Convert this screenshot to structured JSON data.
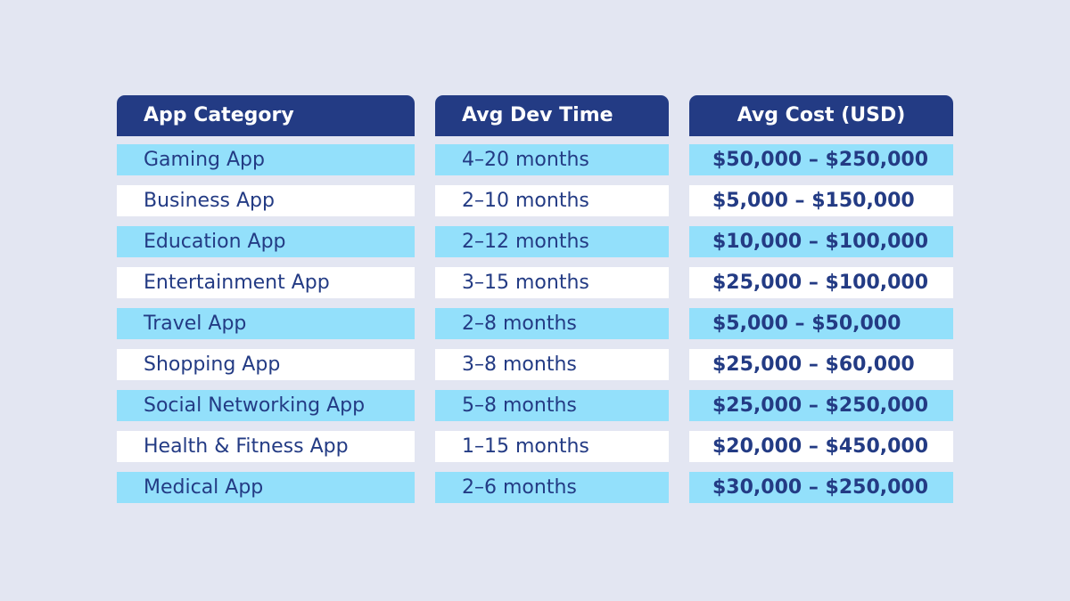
{
  "chart_data": {
    "type": "table",
    "columns": [
      "App Category",
      "Avg Dev Time",
      "Avg Cost (USD)"
    ],
    "rows": [
      [
        "Gaming App",
        "4–20 months",
        "$50,000 – $250,000"
      ],
      [
        "Business App",
        "2–10 months",
        "$5,000 – $150,000"
      ],
      [
        "Education App",
        "2–12 months",
        "$10,000 – $100,000"
      ],
      [
        "Entertainment App",
        "3–15 months",
        "$25,000 – $100,000"
      ],
      [
        "Travel App",
        "2–8 months",
        "$5,000 – $50,000"
      ],
      [
        "Shopping App",
        "3–8 months",
        "$25,000 – $60,000"
      ],
      [
        "Social Networking App",
        "5–8 months",
        "$25,000 – $250,000"
      ],
      [
        "Health & Fitness App",
        "1–15 months",
        "$20,000 – $450,000"
      ],
      [
        "Medical App",
        "2–6 months",
        "$30,000 – $250,000"
      ]
    ]
  },
  "colors": {
    "background": "#e3e6f2",
    "header_bg": "#233b84",
    "header_text": "#ffffff",
    "row_highlight": "#93e0fb",
    "row_plain": "#ffffff",
    "cell_text": "#233b84"
  }
}
